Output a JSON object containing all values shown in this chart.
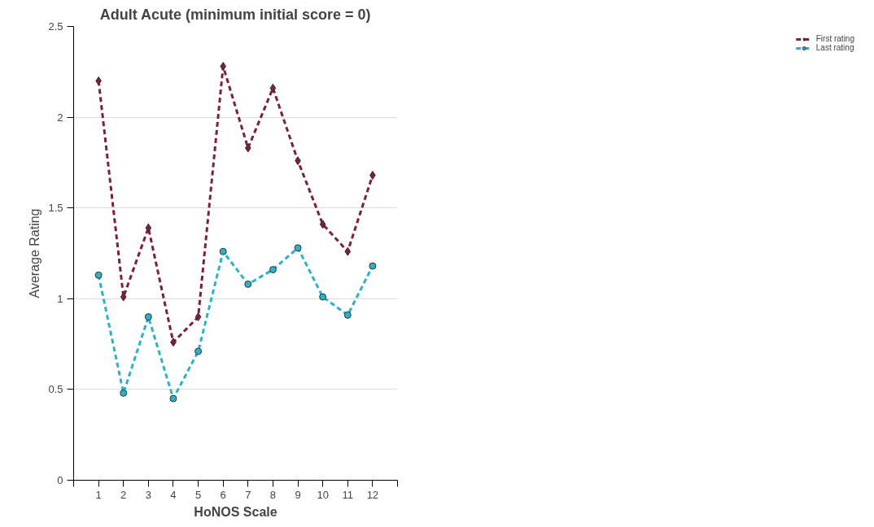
{
  "chart_data": {
    "type": "line",
    "title": "Adult Acute (minimum initial score = 0)",
    "xlabel": "HoNOS Scale",
    "ylabel": "Average Rating",
    "x": [
      1,
      2,
      3,
      4,
      5,
      6,
      7,
      8,
      9,
      10,
      11,
      12
    ],
    "xlim": [
      0,
      13
    ],
    "xticks": [
      {
        "value": 0,
        "label": null
      },
      1,
      2,
      3,
      4,
      5,
      6,
      7,
      8,
      9,
      10,
      11,
      12,
      {
        "value": 13,
        "label": null
      }
    ],
    "ylim": [
      0,
      2.5
    ],
    "yticks": [
      0,
      0.5,
      1,
      1.5,
      2,
      2.5
    ],
    "grid": "y",
    "legend": "top right",
    "line_style": "dashed",
    "series": [
      {
        "name": "First rating",
        "color": "#7b1f3a",
        "marker": "diamond",
        "values": [
          2.2,
          1.01,
          1.39,
          0.76,
          0.9,
          2.28,
          1.83,
          2.16,
          1.76,
          1.41,
          1.26,
          1.68
        ]
      },
      {
        "name": "Last rating",
        "color": "#2ab3c6",
        "marker": "circle",
        "values": [
          1.13,
          0.48,
          0.9,
          0.45,
          0.71,
          1.26,
          1.08,
          1.16,
          1.28,
          1.01,
          0.91,
          1.18
        ]
      }
    ]
  }
}
